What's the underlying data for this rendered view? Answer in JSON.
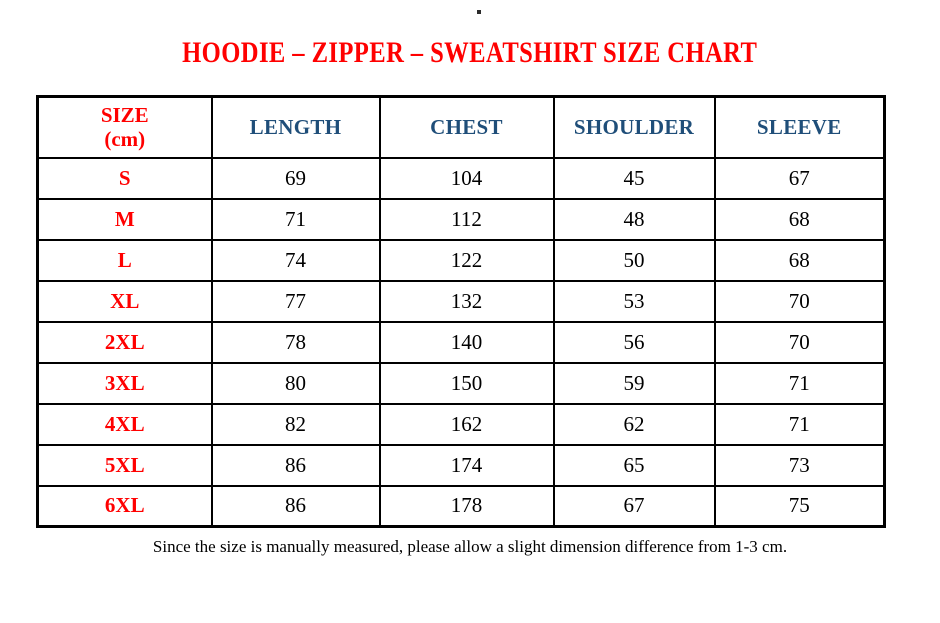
{
  "page": {
    "stray_dot": ".",
    "title": "HOODIE – ZIPPER – SWEATSHIRT SIZE CHART",
    "footnote": "Since the size is manually measured, please allow a slight dimension difference from 1-3 cm."
  },
  "table": {
    "header": {
      "size": "SIZE\n(cm)",
      "length": "LENGTH",
      "chest": "CHEST",
      "shoulder": "SHOULDER",
      "sleeve": "SLEEVE"
    }
  },
  "colors": {
    "background": "#FFFFFF",
    "title_red": "#FF0000",
    "size_label_red": "#FF0000",
    "header_blue": "#1F4E79",
    "body_text": "#000000",
    "border": "#000000"
  },
  "chart_data": {
    "type": "table",
    "title": "HOODIE – ZIPPER – SWEATSHIRT SIZE CHART",
    "unit": "cm",
    "columns": [
      "SIZE (cm)",
      "LENGTH",
      "CHEST",
      "SHOULDER",
      "SLEEVE"
    ],
    "rows": [
      [
        "S",
        69,
        104,
        45,
        67
      ],
      [
        "M",
        71,
        112,
        48,
        68
      ],
      [
        "L",
        74,
        122,
        50,
        68
      ],
      [
        "XL",
        77,
        132,
        53,
        70
      ],
      [
        "2XL",
        78,
        140,
        56,
        70
      ],
      [
        "3XL",
        80,
        150,
        59,
        71
      ],
      [
        "4XL",
        82,
        162,
        62,
        71
      ],
      [
        "5XL",
        86,
        174,
        65,
        73
      ],
      [
        "6XL",
        86,
        178,
        67,
        75
      ]
    ],
    "footnote": "Since the size is manually measured, please allow a slight dimension difference from 1-3 cm."
  }
}
